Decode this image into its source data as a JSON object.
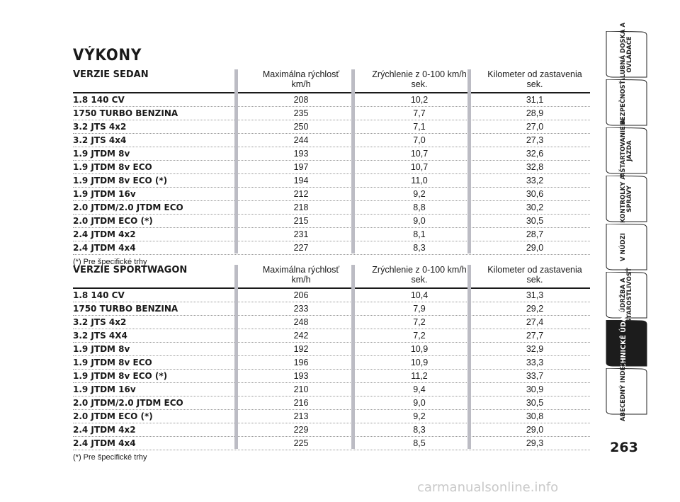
{
  "page_title": "VÝKONY",
  "columns": {
    "max_speed": [
      "Maximálna rýchlosť",
      "km/h"
    ],
    "accel": [
      "Zrýchlenie z 0-100 km/h",
      "sek."
    ],
    "km_stop": [
      "Kilometer od zastavenia",
      "sek."
    ]
  },
  "sedan": {
    "title": "VERZIE SEDAN",
    "note": "(*) Pre špecifické trhy",
    "rows": [
      {
        "model": "1.8 140 CV",
        "speed": "208",
        "accel": "10,2",
        "km": "31,1"
      },
      {
        "model": "1750 TURBO BENZINA",
        "speed": "235",
        "accel": "7,7",
        "km": "28,9"
      },
      {
        "model": "3.2 JTS 4x2",
        "speed": "250",
        "accel": "7,1",
        "km": "27,0"
      },
      {
        "model": "3.2 JTS 4x4",
        "speed": "244",
        "accel": "7,0",
        "km": "27,3"
      },
      {
        "model": "1.9 JTDM 8v",
        "speed": "193",
        "accel": "10,7",
        "km": "32,6"
      },
      {
        "model": "1.9 JTDM 8v ECO",
        "speed": "197",
        "accel": "10,7",
        "km": "32,8"
      },
      {
        "model": "1.9 JTDM 8v ECO (*)",
        "speed": "194",
        "accel": "11,0",
        "km": "33,2"
      },
      {
        "model": "1.9 JTDM 16v",
        "speed": "212",
        "accel": "9,2",
        "km": "30,6"
      },
      {
        "model": "2.0 JTDM/2.0 JTDM ECO",
        "speed": "218",
        "accel": "8,8",
        "km": "30,2"
      },
      {
        "model": "2.0 JTDM ECO (*)",
        "speed": "215",
        "accel": "9,0",
        "km": "30,5"
      },
      {
        "model": "2.4 JTDM 4x2",
        "speed": "231",
        "accel": "8,1",
        "km": "28,7"
      },
      {
        "model": "2.4 JTDM 4x4",
        "speed": "227",
        "accel": "8,3",
        "km": "29,0"
      }
    ]
  },
  "sportwagon": {
    "title": "VERZIE SPORTWAGON",
    "note": "(*) Pre špecifické trhy",
    "rows": [
      {
        "model": "1.8 140 CV",
        "speed": "206",
        "accel": "10,4",
        "km": "31,3"
      },
      {
        "model": "1750 TURBO BENZINA",
        "speed": "233",
        "accel": "7,9",
        "km": "29,2"
      },
      {
        "model": "3.2 JTS 4x2",
        "speed": "248",
        "accel": "7,2",
        "km": "27,4"
      },
      {
        "model": "3.2 JTS 4X4",
        "speed": "242",
        "accel": "7,2",
        "km": "27,7"
      },
      {
        "model": "1.9 JTDM 8v",
        "speed": "192",
        "accel": "10,9",
        "km": "32,9"
      },
      {
        "model": "1.9 JTDM 8v ECO",
        "speed": "196",
        "accel": "10,9",
        "km": "33,3"
      },
      {
        "model": "1.9 JTDM 8v ECO (*)",
        "speed": "193",
        "accel": "11,2",
        "km": "33,7"
      },
      {
        "model": "1.9 JTDM 16v",
        "speed": "210",
        "accel": "9,4",
        "km": "30,9"
      },
      {
        "model": "2.0 JTDM/2.0 JTDM ECO",
        "speed": "216",
        "accel": "9,0",
        "km": "30,5"
      },
      {
        "model": "2.0 JTDM ECO (*)",
        "speed": "213",
        "accel": "9,2",
        "km": "30,8"
      },
      {
        "model": "2.4 JTDM 4x2",
        "speed": "229",
        "accel": "8,3",
        "km": "29,0"
      },
      {
        "model": "2.4 JTDM 4x4",
        "speed": "225",
        "accel": "8,5",
        "km": "29,3"
      }
    ]
  },
  "sidebar": {
    "tabs": [
      {
        "label": "PALUBNÁ DOSKA A OVLÁDAČE",
        "active": false
      },
      {
        "label": "BEZPEČNOSŤ",
        "active": false
      },
      {
        "label": "NAŠTARTOVANIE A JAZDA",
        "active": false
      },
      {
        "label": "KONTROLKY A SPRÁVY",
        "active": false
      },
      {
        "label": "V NÚDZI",
        "active": false
      },
      {
        "label": "ÚDRŽBA A STAROSTLIVOSŤ",
        "active": false
      },
      {
        "label": "TECHNICKÉ ÚDAJE",
        "active": true
      },
      {
        "label": "ABECEDNÝ INDEX",
        "active": false
      }
    ]
  },
  "page_number": "263",
  "watermark": "carmanualsonline.info",
  "colors": {
    "active_tab": "#1c1c1c",
    "column_bar": "#bcbcc4",
    "text": "#1a1a1a"
  }
}
